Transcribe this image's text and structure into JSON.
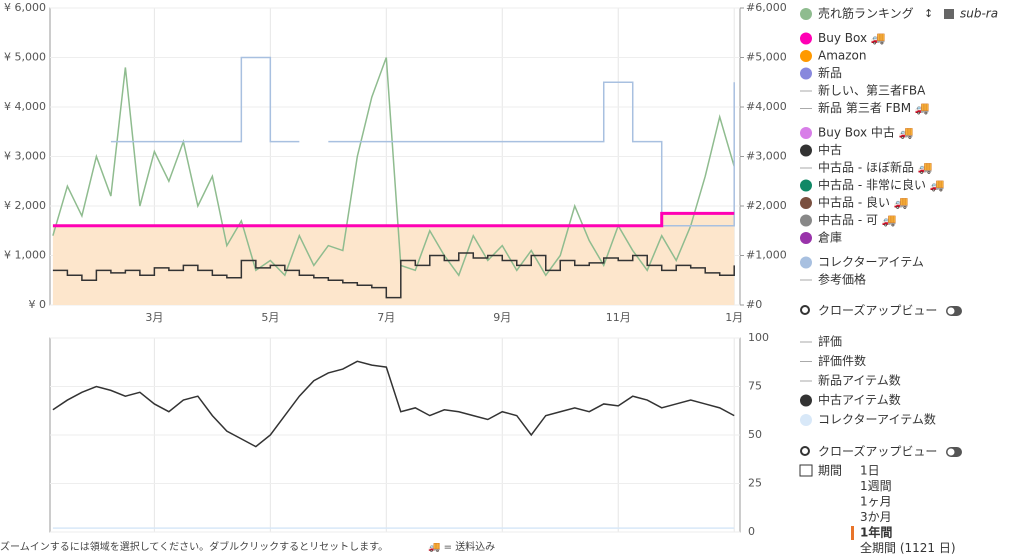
{
  "chart_data": [
    {
      "type": "line",
      "x": [
        0.25,
        0.5,
        0.75,
        1,
        1.25,
        1.5,
        1.75,
        2,
        2.25,
        2.5,
        2.75,
        3,
        3.25,
        3.5,
        3.75,
        4,
        4.25,
        4.5,
        4.75,
        5,
        5.25,
        5.5,
        5.75,
        6,
        6.25,
        6.5,
        6.75,
        7,
        7.25,
        7.5,
        7.75,
        8,
        8.25,
        8.5,
        8.75,
        9,
        9.25,
        9.5,
        9.75,
        10,
        10.25,
        10.5,
        10.75,
        11,
        11.25,
        11.5,
        11.75,
        12
      ],
      "xlim": [
        0.2,
        12.1
      ],
      "xticks": [
        {
          "value": 2,
          "label": "3月"
        },
        {
          "value": 4,
          "label": "5月"
        },
        {
          "value": 6,
          "label": "7月"
        },
        {
          "value": 8,
          "label": "9月"
        },
        {
          "value": 10,
          "label": "11月"
        },
        {
          "value": 12,
          "label": "1月"
        }
      ],
      "ylim": [
        0,
        6000
      ],
      "yticks": [
        {
          "value": 0,
          "label": "¥ 0"
        },
        {
          "value": 1000,
          "label": "¥ 1,000"
        },
        {
          "value": 2000,
          "label": "¥ 2,000"
        },
        {
          "value": 3000,
          "label": "¥ 3,000"
        },
        {
          "value": 4000,
          "label": "¥ 4,000"
        },
        {
          "value": 5000,
          "label": "¥ 5,000"
        },
        {
          "value": 6000,
          "label": "¥ 6,000"
        }
      ],
      "y2lim": [
        0,
        6000
      ],
      "y2ticks": [
        {
          "value": 0,
          "label": "#0"
        },
        {
          "value": 1000,
          "label": "#1,000"
        },
        {
          "value": 2000,
          "label": "#2,000"
        },
        {
          "value": 3000,
          "label": "#3,000"
        },
        {
          "value": 4000,
          "label": "#4,000"
        },
        {
          "value": 5000,
          "label": "#5,000"
        },
        {
          "value": 6000,
          "label": "#6,000"
        }
      ],
      "grid": true,
      "series": [
        {
          "color": "#fde6cc",
          "style": "area",
          "values": [
            1600,
            1600,
            1600,
            1600,
            1600,
            1600,
            1600,
            1600,
            1600,
            1600,
            1600,
            1600,
            1600,
            1600,
            1600,
            1600,
            1600,
            1600,
            1600,
            1600,
            1600,
            1600,
            1600,
            1600,
            1600,
            1600,
            1600,
            1600,
            1600,
            1600,
            1600,
            1600,
            1600,
            1600,
            1600,
            1600,
            1600,
            1600,
            1600,
            1600,
            1600,
            1600,
            1850,
            1850,
            1850,
            1850,
            1850,
            1850
          ]
        },
        {
          "color": "#8fbc8f",
          "axis": "y2",
          "style": "linear",
          "values": [
            1400,
            2400,
            1800,
            3000,
            2200,
            4800,
            2000,
            3100,
            2500,
            3300,
            2000,
            2600,
            1200,
            1700,
            700,
            900,
            600,
            1400,
            800,
            1200,
            1100,
            3000,
            4200,
            5000,
            800,
            700,
            1500,
            1000,
            600,
            1400,
            900,
            1200,
            700,
            1100,
            600,
            1000,
            2000,
            1300,
            800,
            1600,
            1100,
            700,
            1400,
            900,
            1600,
            2600,
            3800,
            2800
          ]
        },
        {
          "color": "#a8c0e0",
          "style": "step",
          "values": [
            null,
            null,
            null,
            null,
            3300,
            3300,
            3300,
            3300,
            3300,
            3300,
            3300,
            3300,
            3300,
            5000,
            5000,
            3300,
            3300,
            3300,
            null,
            3300,
            3300,
            3300,
            3300,
            3300,
            3300,
            3300,
            3300,
            3300,
            3300,
            3300,
            3300,
            3300,
            3300,
            3300,
            3300,
            3300,
            3300,
            3300,
            4500,
            4500,
            3300,
            3300,
            1600,
            1600,
            1600,
            1600,
            1600,
            4500
          ]
        },
        {
          "color": "#ff00b4",
          "style": "step",
          "values": [
            1600,
            1600,
            1600,
            1600,
            1600,
            1600,
            1600,
            1600,
            1600,
            1600,
            1600,
            1600,
            1600,
            1600,
            1600,
            1600,
            1600,
            1600,
            1600,
            1600,
            1600,
            1600,
            1600,
            1600,
            1600,
            1600,
            1600,
            1600,
            1600,
            1600,
            1600,
            1600,
            1600,
            1600,
            1600,
            1600,
            1600,
            1600,
            1600,
            1600,
            1600,
            1600,
            1850,
            1850,
            1850,
            1850,
            1850,
            1850
          ]
        },
        {
          "color": "#333333",
          "style": "step",
          "values": [
            700,
            600,
            500,
            700,
            650,
            700,
            600,
            750,
            700,
            800,
            700,
            600,
            550,
            900,
            750,
            800,
            700,
            600,
            550,
            500,
            450,
            400,
            350,
            150,
            900,
            800,
            1000,
            900,
            1050,
            950,
            1000,
            900,
            800,
            1000,
            700,
            900,
            800,
            850,
            950,
            900,
            1000,
            800,
            700,
            800,
            750,
            650,
            600,
            800
          ]
        }
      ]
    },
    {
      "type": "line",
      "x": [
        0.25,
        0.5,
        0.75,
        1,
        1.25,
        1.5,
        1.75,
        2,
        2.25,
        2.5,
        2.75,
        3,
        3.25,
        3.5,
        3.75,
        4,
        4.25,
        4.5,
        4.75,
        5,
        5.25,
        5.5,
        5.75,
        6,
        6.25,
        6.5,
        6.75,
        7,
        7.25,
        7.5,
        7.75,
        8,
        8.25,
        8.5,
        8.75,
        9,
        9.25,
        9.5,
        9.75,
        10,
        10.25,
        10.5,
        10.75,
        11,
        11.25,
        11.5,
        11.75,
        12
      ],
      "xlim": [
        0.2,
        12.1
      ],
      "xticks": [
        {
          "value": 2,
          "label": ""
        },
        {
          "value": 4,
          "label": ""
        },
        {
          "value": 6,
          "label": ""
        },
        {
          "value": 8,
          "label": ""
        },
        {
          "value": 10,
          "label": ""
        },
        {
          "value": 12,
          "label": ""
        }
      ],
      "ylim": [
        0,
        100
      ],
      "yticks": [
        0,
        25,
        50,
        75,
        100
      ],
      "grid": true,
      "series": [
        {
          "color": "#d8e8f8",
          "style": "step",
          "values": [
            2,
            2,
            2,
            2,
            2,
            2,
            2,
            2,
            2,
            2,
            2,
            2,
            2,
            2,
            2,
            2,
            2,
            2,
            2,
            2,
            2,
            2,
            2,
            2,
            2,
            2,
            2,
            2,
            2,
            2,
            2,
            2,
            2,
            2,
            2,
            2,
            2,
            2,
            2,
            2,
            2,
            2,
            2,
            2,
            2,
            2,
            2,
            2
          ]
        },
        {
          "color": "#333333",
          "style": "linear",
          "values": [
            63,
            68,
            72,
            75,
            73,
            70,
            72,
            66,
            62,
            68,
            70,
            60,
            52,
            48,
            44,
            50,
            60,
            70,
            78,
            82,
            84,
            88,
            86,
            85,
            62,
            64,
            60,
            63,
            62,
            60,
            58,
            62,
            60,
            50,
            60,
            62,
            64,
            62,
            66,
            65,
            70,
            68,
            64,
            66,
            68,
            66,
            64,
            60
          ]
        }
      ]
    }
  ],
  "legend_top": [
    {
      "name": "売れ筋ランキング",
      "color": "#8fbc8f",
      "kind": "dot",
      "tag": "sub-ra"
    },
    {
      "name": "Buy Box 🚚",
      "color": "#ff00b4",
      "kind": "dot"
    },
    {
      "name": "Amazon",
      "color": "#ff9900",
      "kind": "dot"
    },
    {
      "name": "新品",
      "color": "#8888dd",
      "kind": "dot"
    },
    {
      "name": "新しい、第三者FBA",
      "color": "#aaaaaa",
      "kind": "line"
    },
    {
      "name": "新品 第三者 FBM 🚚",
      "color": "#aaaaaa",
      "kind": "line"
    },
    {
      "name": "Buy Box 中古 🚚",
      "color": "#d87ee8",
      "kind": "dot"
    },
    {
      "name": "中古",
      "color": "#333333",
      "kind": "dot"
    },
    {
      "name": "中古品 - ほぼ新品 🚚",
      "color": "#aaaaaa",
      "kind": "line"
    },
    {
      "name": "中古品 - 非常に良い 🚚",
      "color": "#118866",
      "kind": "dot"
    },
    {
      "name": "中古品 - 良い 🚚",
      "color": "#7a5040",
      "kind": "dot"
    },
    {
      "name": "中古品 - 可 🚚",
      "color": "#888888",
      "kind": "dot"
    },
    {
      "name": "倉庫",
      "color": "#9933aa",
      "kind": "dot"
    },
    {
      "name": "コレクターアイテム",
      "color": "#a8c0e0",
      "kind": "dot"
    },
    {
      "name": "参考価格",
      "color": "#aaaaaa",
      "kind": "line"
    }
  ],
  "closeup": "クローズアップビュー",
  "legend_bottom": [
    {
      "name": "評価",
      "color": "#aaaaaa",
      "kind": "line"
    },
    {
      "name": "評価件数",
      "color": "#aaaaaa",
      "kind": "line"
    },
    {
      "name": "新品アイテム数",
      "color": "#aaaaaa",
      "kind": "line"
    },
    {
      "name": "中古アイテム数",
      "color": "#333333",
      "kind": "dot"
    },
    {
      "name": "コレクターアイテム数",
      "color": "#d8e8f8",
      "kind": "dot"
    }
  ],
  "closeup2": "クローズアップビュー",
  "period_label": "期間",
  "periods": [
    "1日",
    "1週間",
    "1ヶ月",
    "3か月",
    "1年間",
    "全期間 (1121 日)"
  ],
  "period_selected": 4,
  "footer": "ズームインするには領域を選択してください。ダブルクリックするとリセットします。",
  "footer_note": "🚚 = 送料込み"
}
